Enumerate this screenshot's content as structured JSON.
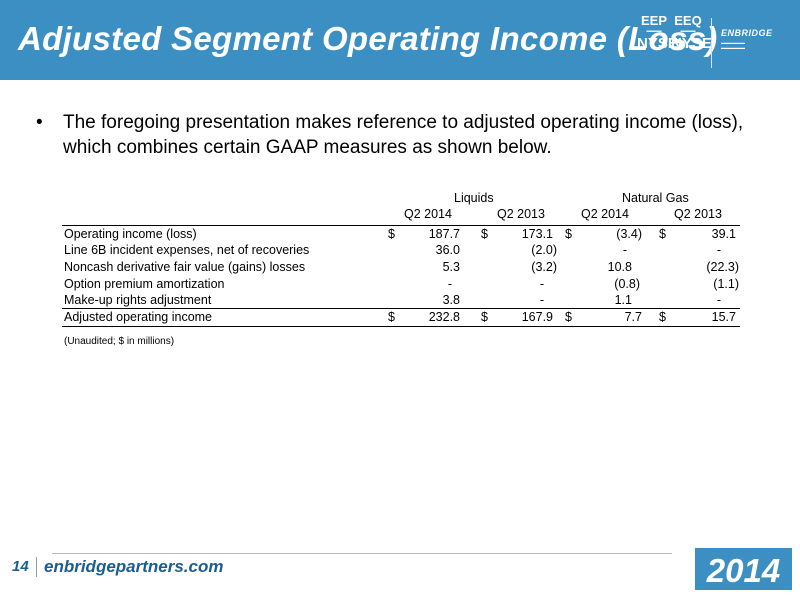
{
  "header": {
    "title": "Adjusted Segment Operating Income (Loss)",
    "tickers": [
      {
        "symbol": "EEP",
        "exchange": "NYSE"
      },
      {
        "symbol": "EEQ",
        "exchange": "NYSE"
      }
    ],
    "logo_text": "ENBRIDGE"
  },
  "bullet": {
    "text": "The foregoing presentation makes reference to adjusted operating income (loss), which combines certain GAAP measures as shown below."
  },
  "table": {
    "groups": [
      "Liquids",
      "Natural Gas"
    ],
    "periods": [
      "Q2 2014",
      "Q2 2013",
      "Q2 2014",
      "Q2 2013"
    ],
    "rows": [
      {
        "label": "Operating income (loss)",
        "values": [
          "187.7",
          "173.1",
          "(3.4)",
          "39.1"
        ],
        "currency": true
      },
      {
        "label": "Line 6B incident expenses, net of recoveries",
        "values": [
          "36.0",
          "(2.0)",
          "-",
          "-"
        ],
        "currency": false
      },
      {
        "label": "Noncash derivative fair value (gains) losses",
        "values": [
          "5.3",
          "(3.2)",
          "10.8",
          "(22.3)"
        ],
        "currency": false
      },
      {
        "label": "Option premium amortization",
        "values": [
          "-",
          "-",
          "(0.8)",
          "(1.1)"
        ],
        "currency": false
      },
      {
        "label": "Make-up rights adjustment",
        "values": [
          "3.8",
          "-",
          "1.1",
          "-"
        ],
        "currency": false
      },
      {
        "label": "Adjusted operating income",
        "values": [
          "232.8",
          "167.9",
          "7.7",
          "15.7"
        ],
        "currency": true
      }
    ],
    "currency_symbol": "$",
    "note": "(Unaudited; $ in millions)"
  },
  "footer": {
    "page_number": "14",
    "website": "enbridgepartners.com",
    "year": "2014"
  }
}
